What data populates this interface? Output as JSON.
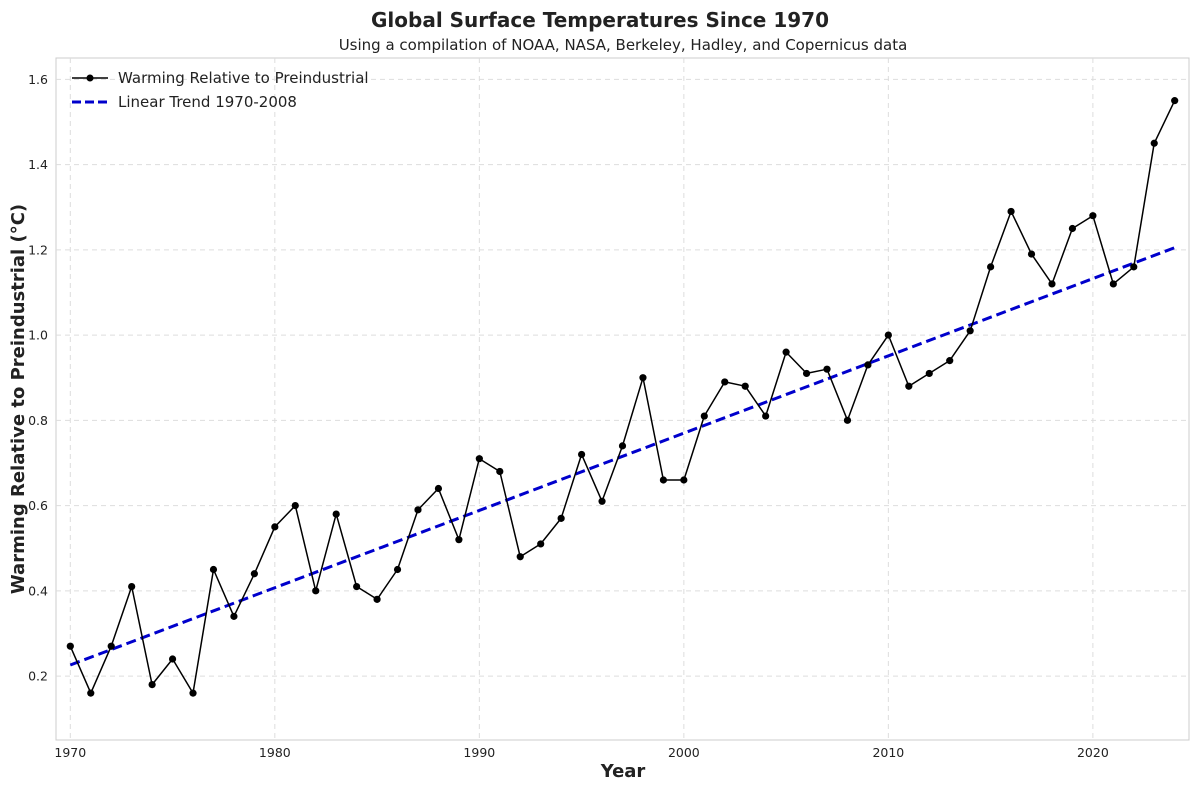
{
  "chart_data": {
    "type": "line",
    "title": "Global Surface Temperatures Since 1970",
    "subtitle": "Using a compilation of NOAA, NASA, Berkeley, Hadley, and Copernicus data",
    "xlabel": "Year",
    "ylabel": "Warming Relative to Preindustrial (°C)",
    "xlim": [
      1969.3,
      2024.7
    ],
    "ylim": [
      0.05,
      1.65
    ],
    "xticks": [
      1970,
      1980,
      1990,
      2000,
      2010,
      2020
    ],
    "yticks": [
      0.2,
      0.4,
      0.6,
      0.8,
      1.0,
      1.2,
      1.4,
      1.6
    ],
    "ytick_labels": [
      "0.2",
      "0.4",
      "0.6",
      "0.8",
      "1.0",
      "1.2",
      "1.4",
      "1.6"
    ],
    "grid": true,
    "legend_position": "top-left",
    "x": [
      1970,
      1971,
      1972,
      1973,
      1974,
      1975,
      1976,
      1977,
      1978,
      1979,
      1980,
      1981,
      1982,
      1983,
      1984,
      1985,
      1986,
      1987,
      1988,
      1989,
      1990,
      1991,
      1992,
      1993,
      1994,
      1995,
      1996,
      1997,
      1998,
      1999,
      2000,
      2001,
      2002,
      2003,
      2004,
      2005,
      2006,
      2007,
      2008,
      2009,
      2010,
      2011,
      2012,
      2013,
      2014,
      2015,
      2016,
      2017,
      2018,
      2019,
      2020,
      2021,
      2022,
      2023,
      2024
    ],
    "series": [
      {
        "name": "Warming Relative to Preindustrial",
        "color": "#000000",
        "style": "solid-with-markers",
        "values": [
          0.27,
          0.16,
          0.27,
          0.41,
          0.18,
          0.24,
          0.16,
          0.45,
          0.34,
          0.44,
          0.55,
          0.6,
          0.4,
          0.58,
          0.41,
          0.38,
          0.45,
          0.59,
          0.64,
          0.52,
          0.71,
          0.68,
          0.48,
          0.51,
          0.57,
          0.72,
          0.61,
          0.74,
          0.9,
          0.66,
          0.66,
          0.81,
          0.89,
          0.88,
          0.81,
          0.96,
          0.91,
          0.92,
          0.8,
          0.93,
          1.0,
          0.88,
          0.91,
          0.94,
          1.01,
          1.16,
          1.29,
          1.19,
          1.12,
          1.25,
          1.28,
          1.12,
          1.16,
          1.45,
          1.55
        ]
      },
      {
        "name": "Linear Trend 1970-2008",
        "color": "#0000cc",
        "style": "dashed",
        "x": [
          1970,
          2024
        ],
        "values": [
          0.226,
          1.205
        ]
      }
    ]
  }
}
